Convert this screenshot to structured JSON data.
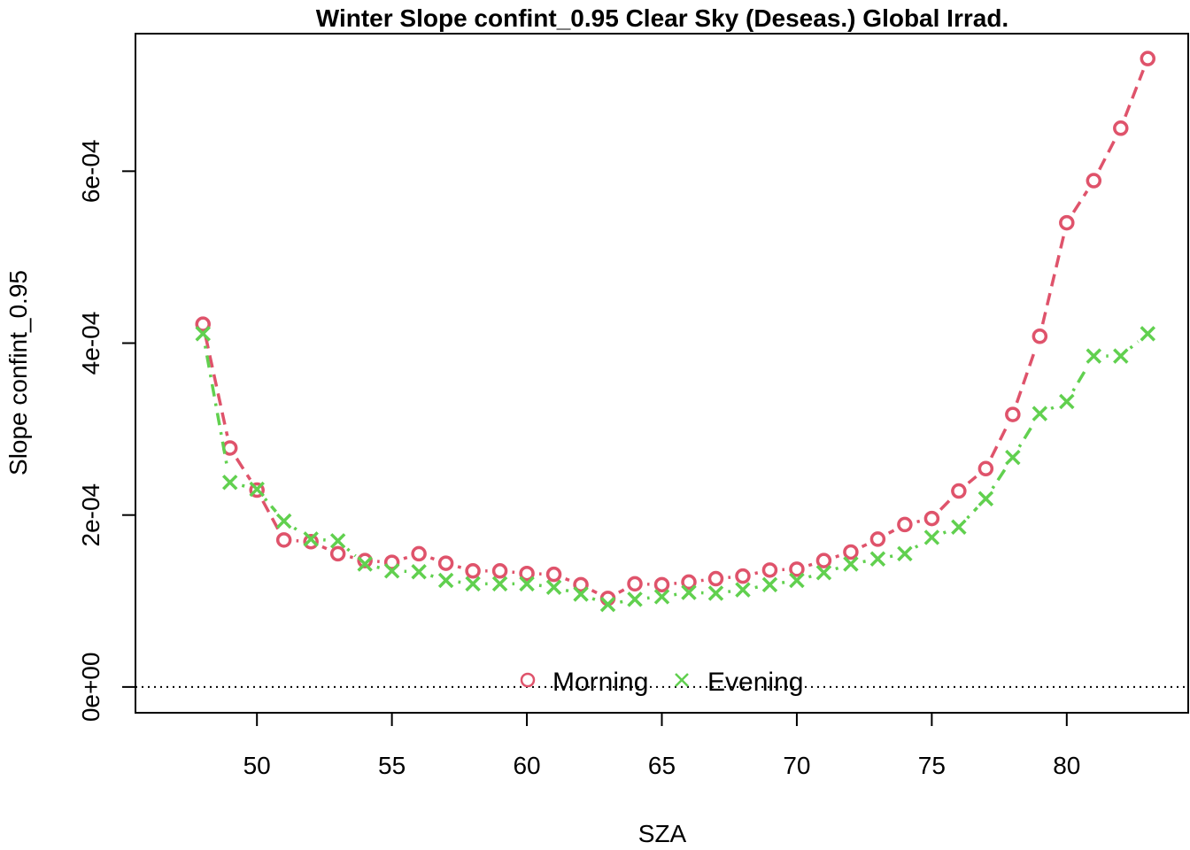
{
  "chart_data": {
    "type": "line",
    "title": "Winter Slope confint_0.95 Clear Sky (Deseas.) Global Irrad.",
    "xlabel": "SZA",
    "ylabel": "Slope confint_0.95",
    "xlim": [
      45.5,
      84.5
    ],
    "ylim": [
      -3e-05,
      0.00076
    ],
    "x_ticks": [
      50,
      55,
      60,
      65,
      70,
      75,
      80
    ],
    "x_tick_labels": [
      "50",
      "55",
      "60",
      "65",
      "70",
      "75",
      "80"
    ],
    "y_ticks": [
      0,
      0.0002,
      0.0004,
      0.0006
    ],
    "y_tick_labels": [
      "0e+00",
      "2e-04",
      "4e-04",
      "6e-04"
    ],
    "reference_line": {
      "y": 0,
      "style": "dotted"
    },
    "grid": false,
    "legend_position": "bottom-center",
    "series": [
      {
        "name": "Morning",
        "color": "#DF536B",
        "marker": "circle",
        "line_style": "dashed",
        "x": [
          48,
          49,
          50,
          51,
          52,
          53,
          54,
          55,
          56,
          57,
          58,
          59,
          60,
          61,
          62,
          63,
          64,
          65,
          66,
          67,
          68,
          69,
          70,
          71,
          72,
          73,
          74,
          75,
          76,
          77,
          78,
          79,
          80,
          81,
          82,
          83
        ],
        "values": [
          0.000422,
          0.000278,
          0.000229,
          0.000171,
          0.000169,
          0.000155,
          0.000147,
          0.000145,
          0.000155,
          0.000144,
          0.000135,
          0.000135,
          0.000132,
          0.000131,
          0.000119,
          0.000103,
          0.00012,
          0.000119,
          0.000122,
          0.000126,
          0.000129,
          0.000136,
          0.000137,
          0.000147,
          0.000157,
          0.000172,
          0.000189,
          0.000196,
          0.000228,
          0.000254,
          0.000317,
          0.000408,
          0.00054,
          0.000589,
          0.00065,
          0.000731
        ]
      },
      {
        "name": "Evening",
        "color": "#61D04F",
        "marker": "x",
        "line_style": "dotdash",
        "x": [
          48,
          49,
          50,
          51,
          52,
          53,
          54,
          55,
          56,
          57,
          58,
          59,
          60,
          61,
          62,
          63,
          64,
          65,
          66,
          67,
          68,
          69,
          70,
          71,
          72,
          73,
          74,
          75,
          76,
          77,
          78,
          79,
          80,
          81,
          82,
          83
        ],
        "values": [
          0.000411,
          0.000238,
          0.00023,
          0.000193,
          0.000172,
          0.00017,
          0.000143,
          0.000135,
          0.000134,
          0.000124,
          0.00012,
          0.00012,
          0.00012,
          0.000116,
          0.000108,
          9.6e-05,
          0.000102,
          0.000105,
          0.00011,
          0.000109,
          0.000113,
          0.000119,
          0.000124,
          0.000133,
          0.000143,
          0.000149,
          0.000155,
          0.000174,
          0.000186,
          0.000219,
          0.000267,
          0.000318,
          0.000332,
          0.000385,
          0.000385,
          0.000411
        ]
      }
    ]
  }
}
